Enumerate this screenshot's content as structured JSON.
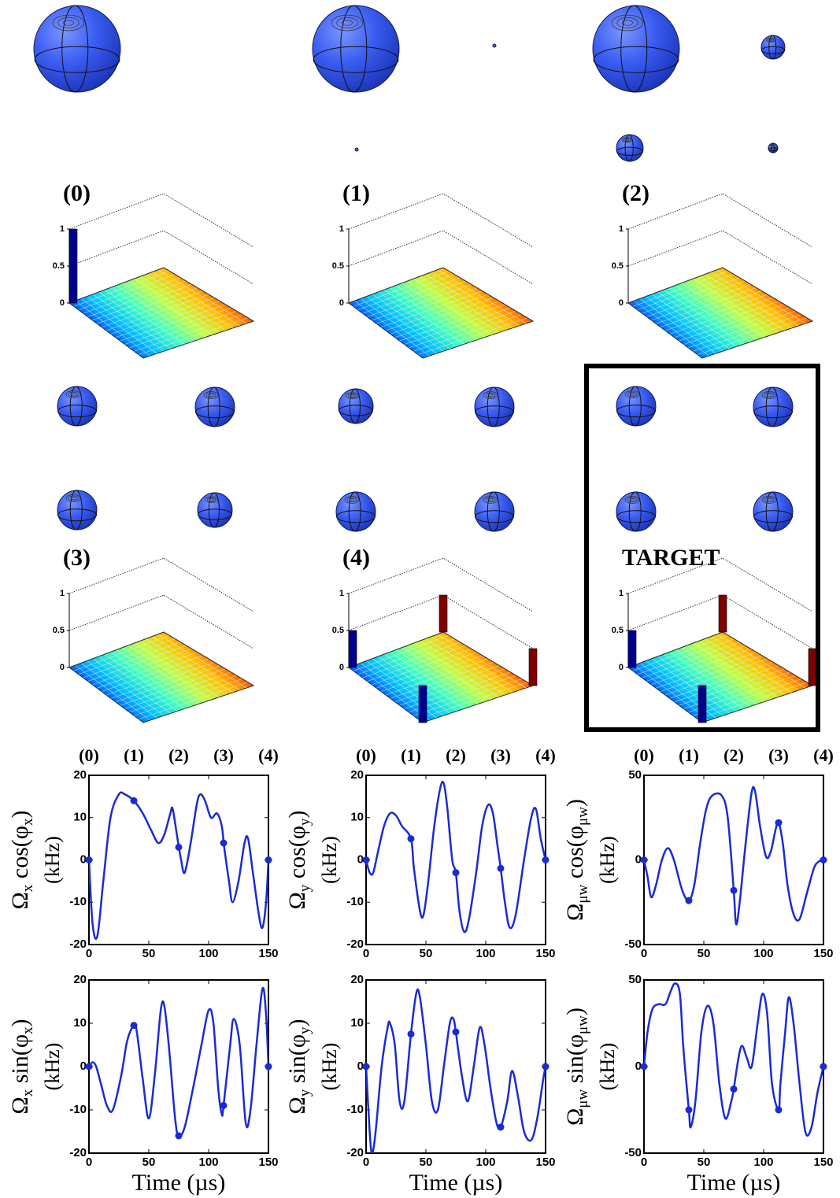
{
  "chart_data": [
    {
      "type": "bar3d",
      "title": "(0)",
      "zlim": [
        0,
        1
      ],
      "zticks": [
        0,
        0.5,
        1
      ],
      "corner_bars": {
        "positions": [
          "left"
        ],
        "values": [
          1
        ],
        "colors": [
          "#00008f"
        ]
      }
    },
    {
      "type": "bar3d",
      "title": "(1)",
      "zlim": [
        0,
        1
      ],
      "zticks": [
        0,
        0.5,
        1
      ]
    },
    {
      "type": "bar3d",
      "title": "(2)",
      "zlim": [
        0,
        1
      ],
      "zticks": [
        0,
        0.5,
        1
      ]
    },
    {
      "type": "bar3d",
      "title": "(3)",
      "zlim": [
        0,
        1
      ],
      "zticks": [
        0,
        0.5,
        1
      ]
    },
    {
      "type": "bar3d",
      "title": "(4)",
      "zlim": [
        0,
        1
      ],
      "zticks": [
        0,
        0.5,
        1
      ],
      "corner_bars": {
        "positions": [
          "left",
          "front",
          "back",
          "right"
        ],
        "values": [
          0.5,
          0.5,
          0.5,
          0.5
        ],
        "colors": [
          "#00008f",
          "#00008f",
          "#800000",
          "#800000"
        ]
      }
    },
    {
      "type": "bar3d",
      "title": "TARGET",
      "zlim": [
        0,
        1
      ],
      "zticks": [
        0,
        0.5,
        1
      ],
      "corner_bars": {
        "positions": [
          "left",
          "front",
          "back",
          "right"
        ],
        "values": [
          0.5,
          0.5,
          0.5,
          0.5
        ],
        "colors": [
          "#00008f",
          "#00008f",
          "#800000",
          "#800000"
        ]
      },
      "boxed": true
    },
    {
      "type": "line",
      "stage_labels": [
        "(0)",
        "(1)",
        "(2)",
        "(3)",
        "(4)"
      ],
      "ylabel": [
        "Ω",
        "x",
        " cos(",
        "φ",
        "x",
        ")"
      ],
      "ylabel_unit": "(kHz)",
      "xlim": [
        0,
        150
      ],
      "xticks": [
        0,
        50,
        100,
        150
      ],
      "ylim": [
        -20,
        20
      ],
      "yticks": [
        -20,
        -10,
        0,
        10,
        20
      ],
      "color": "#1a2bd6",
      "x": [
        0,
        3,
        7,
        12,
        18,
        25,
        30,
        37.5,
        45,
        52,
        58,
        63,
        68,
        70,
        74,
        77,
        80,
        85,
        90,
        93,
        97,
        102,
        107,
        111,
        113,
        117,
        120,
        125,
        130,
        133,
        137,
        142,
        145,
        148,
        150
      ],
      "values": [
        0,
        -15,
        -18,
        -5,
        10,
        15.5,
        15.5,
        14,
        11,
        7,
        4,
        6,
        11,
        12,
        5,
        0,
        -3,
        4,
        13,
        15.5,
        14,
        10,
        11,
        8,
        3,
        -5,
        -10,
        -5,
        4,
        5,
        -3,
        -13,
        -16,
        -10,
        0
      ],
      "markers": {
        "x": [
          0,
          37.5,
          75,
          112.5,
          150
        ],
        "values": [
          0,
          14,
          3,
          4,
          0
        ]
      }
    },
    {
      "type": "line",
      "stage_labels": [
        "(0)",
        "(1)",
        "(2)",
        "(3)",
        "(4)"
      ],
      "ylabel": [
        "Ω",
        "y",
        " cos(",
        "φ",
        "y",
        ")"
      ],
      "ylabel_unit": "(kHz)",
      "xlim": [
        0,
        150
      ],
      "xticks": [
        0,
        50,
        100,
        150
      ],
      "ylim": [
        -20,
        20
      ],
      "yticks": [
        -20,
        -10,
        0,
        10,
        20
      ],
      "color": "#1a2bd6",
      "x": [
        0,
        3,
        6,
        10,
        15,
        20,
        25,
        30,
        37.5,
        40,
        45,
        48,
        52,
        57,
        62,
        65,
        68,
        72,
        75,
        78,
        82,
        86,
        92,
        97,
        102,
        106,
        110,
        112.5,
        116,
        120,
        125,
        132,
        138,
        142,
        146,
        150
      ],
      "values": [
        0,
        -3,
        -3,
        2,
        8,
        11,
        10.5,
        8,
        5,
        -2,
        -12,
        -13,
        -5,
        8,
        17,
        18,
        12,
        0,
        -3,
        -12,
        -17,
        -14,
        -3,
        8,
        13,
        11,
        3,
        -2,
        -10,
        -16,
        -13,
        0,
        10,
        12,
        5,
        0
      ],
      "markers": {
        "x": [
          0,
          37.5,
          75,
          112.5,
          150
        ],
        "values": [
          0,
          5,
          -3,
          -2,
          0
        ]
      }
    },
    {
      "type": "line",
      "stage_labels": [
        "(0)",
        "(1)",
        "(2)",
        "(3)",
        "(4)"
      ],
      "ylabel": [
        "Ω",
        "μw",
        " cos(",
        "φ",
        "μw",
        ")"
      ],
      "ylabel_unit": "(kHz)",
      "xlim": [
        0,
        150
      ],
      "xticks": [
        0,
        50,
        100,
        150
      ],
      "ylim": [
        -50,
        50
      ],
      "yticks": [
        -50,
        0,
        50
      ],
      "color": "#1a2bd6",
      "x": [
        0,
        3,
        6,
        10,
        15,
        20,
        25,
        32,
        37.5,
        42,
        47,
        52,
        57,
        65,
        70,
        75,
        77,
        80,
        85,
        90,
        93,
        97,
        102,
        106,
        110,
        112.5,
        116,
        120,
        125,
        130,
        136,
        142,
        146,
        150
      ],
      "values": [
        0,
        -10,
        -22,
        -15,
        0,
        7,
        0,
        -18,
        -24,
        -15,
        10,
        30,
        38,
        38,
        25,
        -18,
        -38,
        -25,
        10,
        40,
        40,
        20,
        2,
        5,
        18,
        22,
        10,
        -15,
        -32,
        -35,
        -20,
        -5,
        -1,
        0
      ],
      "markers": {
        "x": [
          0,
          37.5,
          75,
          112.5,
          150
        ],
        "values": [
          0,
          -24,
          -18,
          22,
          0
        ]
      }
    },
    {
      "type": "line",
      "ylabel": [
        "Ω",
        "x",
        " sin(",
        "φ",
        "x",
        ")"
      ],
      "ylabel_unit": "(kHz)",
      "xlabel": "Time (µs)",
      "xlim": [
        0,
        150
      ],
      "xticks": [
        0,
        50,
        100,
        150
      ],
      "ylim": [
        -20,
        20
      ],
      "yticks": [
        -20,
        -10,
        0,
        10,
        20
      ],
      "color": "#1a2bd6",
      "x": [
        0,
        3,
        6,
        10,
        15,
        20,
        27,
        32,
        37.5,
        40,
        45,
        50,
        55,
        60,
        63,
        67,
        72,
        75,
        80,
        87,
        94,
        100,
        104,
        108,
        111,
        112.5,
        118,
        121,
        126,
        131,
        135,
        140,
        145,
        148,
        150
      ],
      "values": [
        0,
        1,
        0,
        -4,
        -9,
        -10,
        -2,
        6,
        9.5,
        8,
        -3,
        -12,
        -2,
        13,
        14,
        4,
        -12,
        -16,
        -14,
        -5,
        5,
        13,
        10,
        -5,
        -11,
        -9,
        5,
        11,
        5,
        -13,
        -10,
        5,
        18,
        12,
        0
      ],
      "markers": {
        "x": [
          0,
          37.5,
          75,
          112.5,
          150
        ],
        "values": [
          0,
          9.5,
          -16,
          -9,
          0
        ]
      }
    },
    {
      "type": "line",
      "ylabel": [
        "Ω",
        "y",
        " sin(",
        "φ",
        "y",
        ")"
      ],
      "ylabel_unit": "(kHz)",
      "xlabel": "Time (µs)",
      "xlim": [
        0,
        150
      ],
      "xticks": [
        0,
        50,
        100,
        150
      ],
      "ylim": [
        -20,
        20
      ],
      "yticks": [
        -20,
        -10,
        0,
        10,
        20
      ],
      "color": "#1a2bd6",
      "x": [
        0,
        3,
        5,
        8,
        13,
        18,
        20,
        24,
        28,
        32,
        37.5,
        42,
        45,
        50,
        55,
        60,
        65,
        70,
        73,
        75,
        80,
        85,
        90,
        95,
        99,
        104,
        109,
        112.5,
        118,
        122,
        127,
        132,
        138,
        143,
        148,
        150
      ],
      "values": [
        0,
        -15,
        -20,
        -15,
        0,
        9,
        10,
        5,
        -8,
        -8,
        7.5,
        17,
        16,
        5,
        -8,
        -10,
        0,
        10,
        11,
        8,
        -2,
        -8,
        0,
        9,
        5,
        -5,
        -13,
        -14,
        -8,
        -1,
        -7,
        -15,
        -17,
        -12,
        -3,
        0
      ],
      "markers": {
        "x": [
          0,
          37.5,
          75,
          112.5,
          150
        ],
        "values": [
          0,
          7.5,
          8,
          -14,
          0
        ]
      }
    },
    {
      "type": "line",
      "ylabel": [
        "Ω",
        "μw",
        " sin(",
        "φ",
        "μw",
        ")"
      ],
      "ylabel_unit": "(kHz)",
      "xlabel": "Time (µs)",
      "xlim": [
        0,
        150
      ],
      "xticks": [
        0,
        50,
        100,
        150
      ],
      "ylim": [
        -50,
        50
      ],
      "yticks": [
        -50,
        0,
        50
      ],
      "color": "#1a2bd6",
      "x": [
        0,
        3,
        7,
        12,
        18,
        22,
        26,
        30,
        33,
        37.5,
        39,
        43,
        48,
        53,
        58,
        63,
        68,
        73,
        75,
        79,
        82,
        86,
        90,
        95,
        99,
        103,
        107,
        112.5,
        114,
        118,
        121,
        125,
        130,
        135,
        140,
        145,
        150
      ],
      "values": [
        0,
        20,
        33,
        36,
        36,
        43,
        48,
        42,
        10,
        -25,
        -35,
        -20,
        20,
        35,
        25,
        -10,
        -30,
        -20,
        -13,
        5,
        12,
        5,
        0,
        25,
        42,
        30,
        -10,
        -25,
        -10,
        20,
        40,
        25,
        -10,
        -38,
        -35,
        -15,
        0
      ],
      "markers": {
        "x": [
          0,
          37.5,
          75,
          112.5,
          150
        ],
        "values": [
          0,
          -25,
          -13,
          -25,
          0
        ]
      }
    }
  ]
}
